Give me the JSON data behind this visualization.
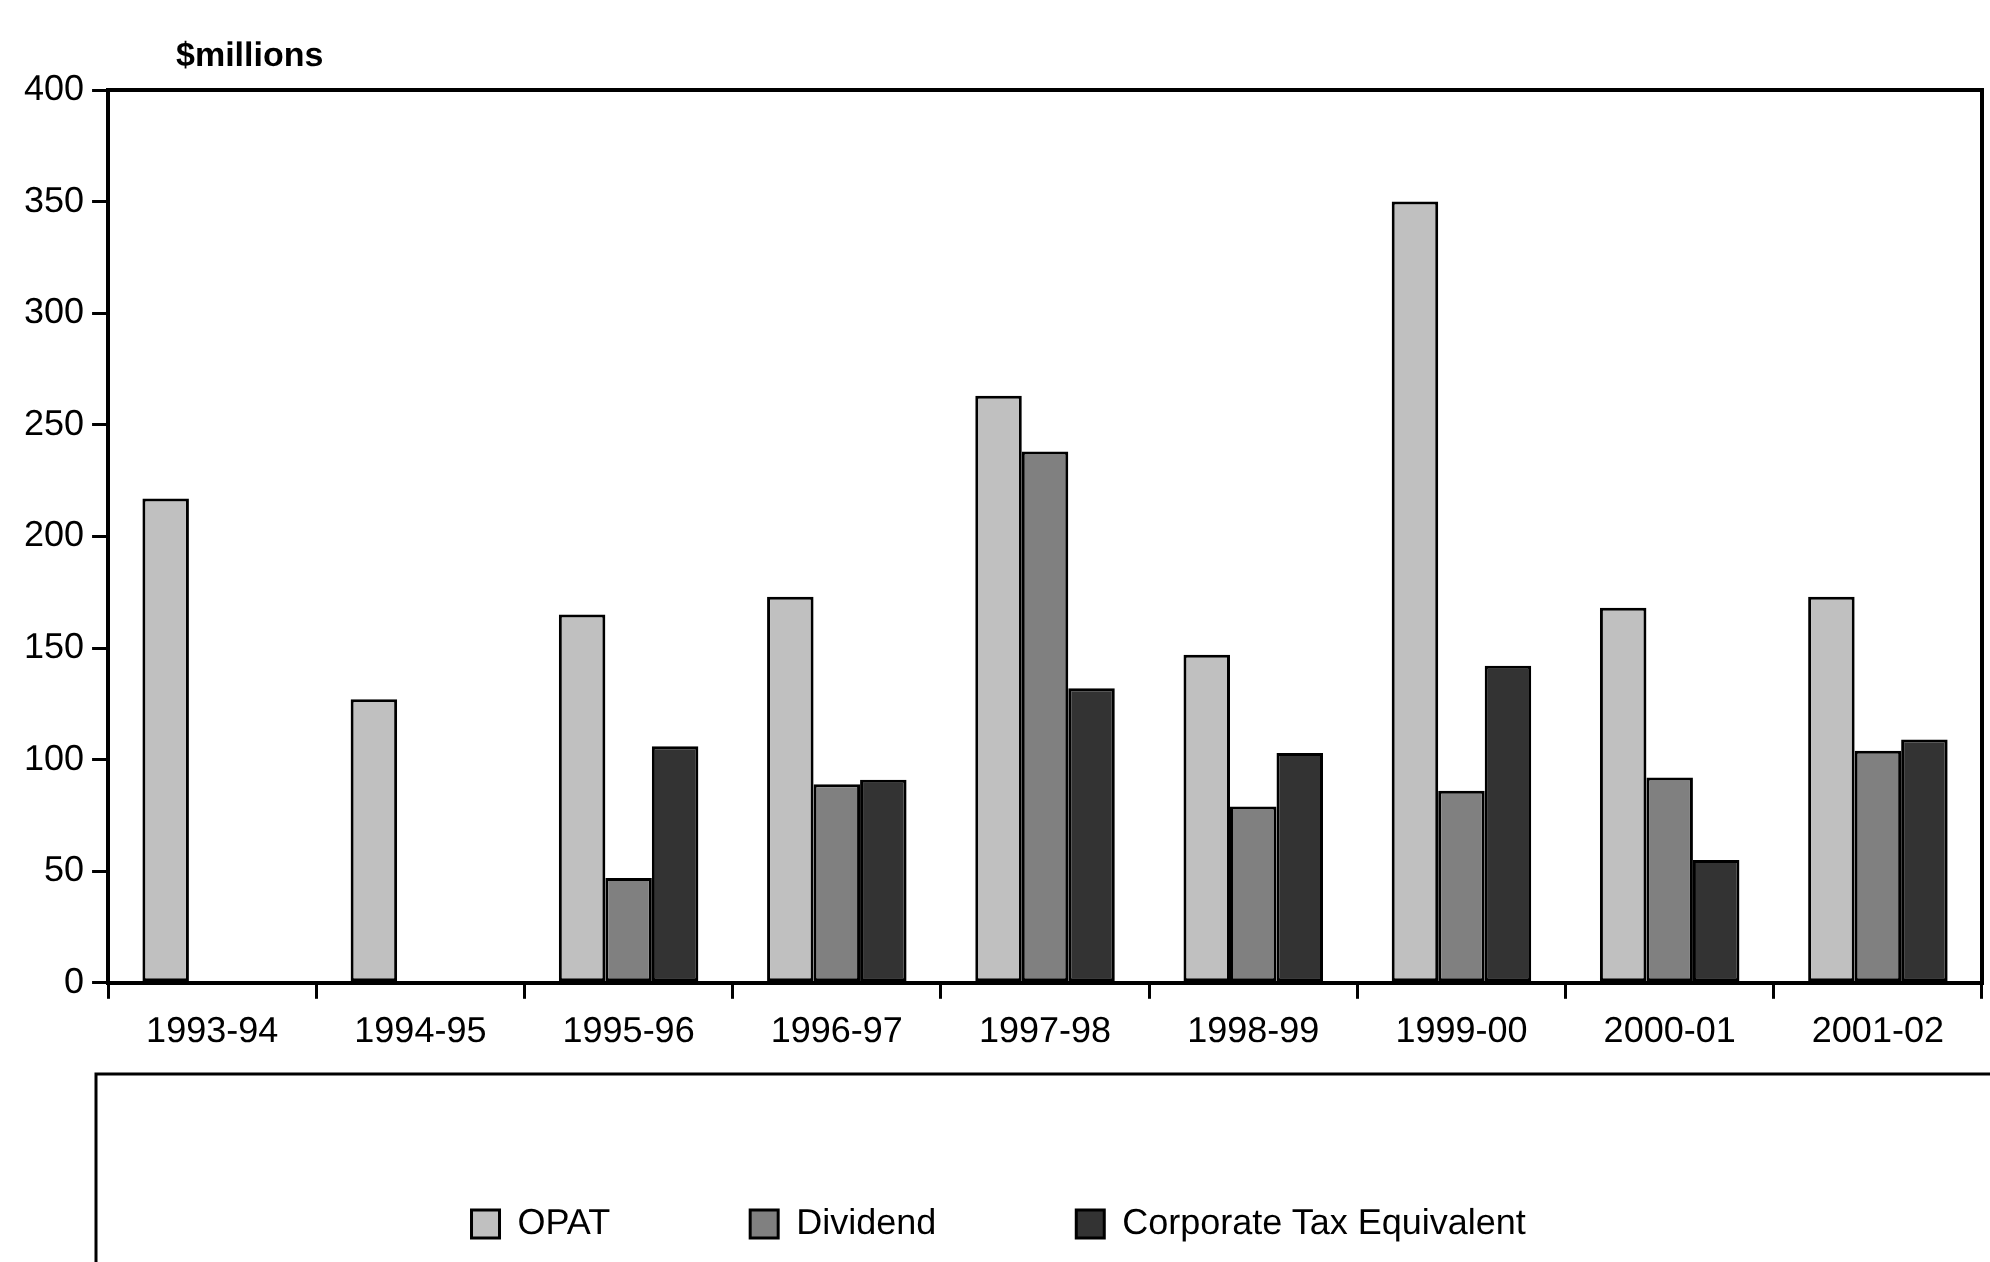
{
  "chart_data": {
    "type": "bar",
    "ylabel": "$millions",
    "categories": [
      "1993-94",
      "1994-95",
      "1995-96",
      "1996-97",
      "1997-98",
      "1998-99",
      "1999-00",
      "2000-01",
      "2001-02"
    ],
    "series": [
      {
        "name": "OPAT",
        "color": "#c0c0c0",
        "values": [
          217,
          127,
          165,
          173,
          263,
          147,
          350,
          168,
          173
        ]
      },
      {
        "name": "Dividend",
        "color": "#808080",
        "values": [
          null,
          null,
          47,
          89,
          238,
          79,
          86,
          92,
          104
        ]
      },
      {
        "name": "Corporate Tax Equivalent",
        "color": "#333333",
        "values": [
          null,
          null,
          106,
          91,
          132,
          103,
          142,
          55,
          109
        ]
      }
    ],
    "ylim": [
      0,
      400
    ],
    "yticks": [
      0,
      50,
      100,
      150,
      200,
      250,
      300,
      350,
      400
    ],
    "legend": "bottom"
  }
}
